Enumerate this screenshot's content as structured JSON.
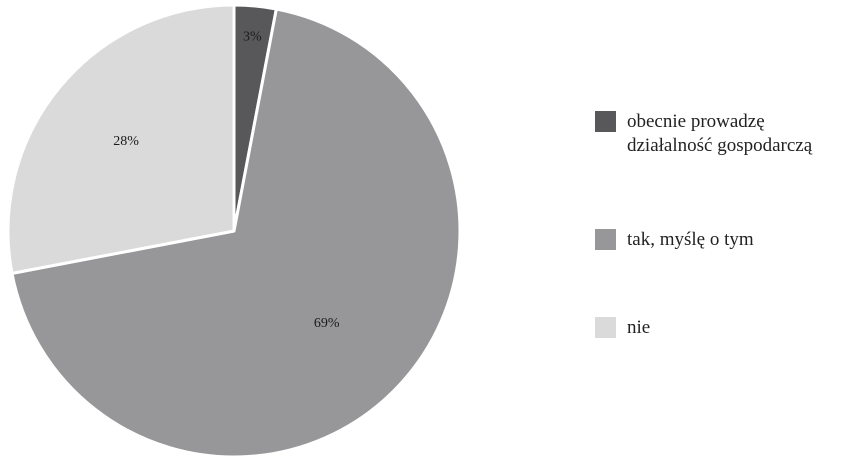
{
  "chart_data": {
    "type": "pie",
    "title": "",
    "slices": [
      {
        "label": "obecnie prowadzę działalność gospodarczą",
        "value": 3,
        "value_label": "3%",
        "color": "#58585a"
      },
      {
        "label": "tak, myślę o tym",
        "value": 69,
        "value_label": "69%",
        "color": "#97979a"
      },
      {
        "label": "nie",
        "value": 28,
        "value_label": "28%",
        "color": "#dadadb"
      }
    ],
    "legend_position": "right",
    "slice_border_color": "#ffffff"
  },
  "legend": {
    "items": [
      {
        "label": "obecnie prowadzę\ndziałalność gospodarczą"
      },
      {
        "label": "tak, myślę o tym"
      },
      {
        "label": "nie"
      }
    ]
  }
}
